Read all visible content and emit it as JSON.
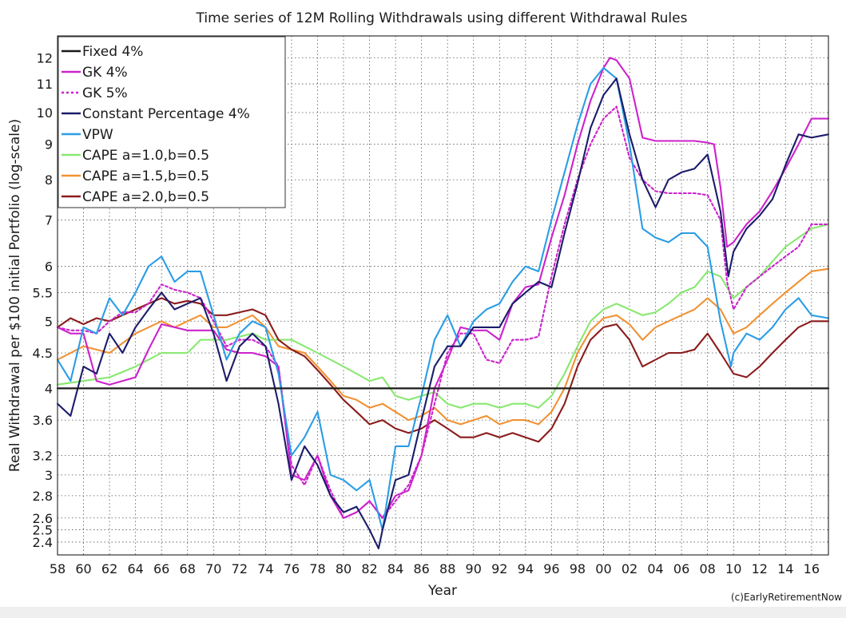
{
  "chart_data": {
    "type": "line",
    "title": "Time series of 12M Rolling Withdrawals using different Withdrawal Rules",
    "xlabel": "Year",
    "ylabel": "Real Withdrawal per $100 initial Portfolio (log-scale)",
    "credit": "(c)EarlyRetirementNow",
    "y_scale": "log",
    "xlim": [
      1958,
      2017.3
    ],
    "ylim": [
      2.3,
      12.9
    ],
    "grid": true,
    "legend_position": "top-left",
    "x_ticks": [
      {
        "v": 1958,
        "label": "58"
      },
      {
        "v": 1960,
        "label": "60"
      },
      {
        "v": 1962,
        "label": "62"
      },
      {
        "v": 1964,
        "label": "64"
      },
      {
        "v": 1966,
        "label": "66"
      },
      {
        "v": 1968,
        "label": "68"
      },
      {
        "v": 1970,
        "label": "70"
      },
      {
        "v": 1972,
        "label": "72"
      },
      {
        "v": 1974,
        "label": "74"
      },
      {
        "v": 1976,
        "label": "76"
      },
      {
        "v": 1978,
        "label": "78"
      },
      {
        "v": 1980,
        "label": "80"
      },
      {
        "v": 1982,
        "label": "82"
      },
      {
        "v": 1984,
        "label": "84"
      },
      {
        "v": 1986,
        "label": "86"
      },
      {
        "v": 1988,
        "label": "88"
      },
      {
        "v": 1990,
        "label": "90"
      },
      {
        "v": 1992,
        "label": "92"
      },
      {
        "v": 1994,
        "label": "94"
      },
      {
        "v": 1996,
        "label": "96"
      },
      {
        "v": 1998,
        "label": "98"
      },
      {
        "v": 2000,
        "label": "00"
      },
      {
        "v": 2002,
        "label": "02"
      },
      {
        "v": 2004,
        "label": "04"
      },
      {
        "v": 2006,
        "label": "06"
      },
      {
        "v": 2008,
        "label": "08"
      },
      {
        "v": 2010,
        "label": "10"
      },
      {
        "v": 2012,
        "label": "12"
      },
      {
        "v": 2014,
        "label": "14"
      },
      {
        "v": 2016,
        "label": "16"
      }
    ],
    "y_ticks": [
      {
        "v": 2.4,
        "label": "2.4"
      },
      {
        "v": 2.5,
        "label": "2.5"
      },
      {
        "v": 2.6,
        "label": "2.6"
      },
      {
        "v": 2.8,
        "label": "2.8"
      },
      {
        "v": 3,
        "label": "3"
      },
      {
        "v": 3.2,
        "label": "3.2"
      },
      {
        "v": 3.6,
        "label": "3.6"
      },
      {
        "v": 4,
        "label": "4"
      },
      {
        "v": 4.5,
        "label": "4.5"
      },
      {
        "v": 5,
        "label": "5"
      },
      {
        "v": 5.5,
        "label": "5.5"
      },
      {
        "v": 6,
        "label": "6"
      },
      {
        "v": 7,
        "label": "7"
      },
      {
        "v": 8,
        "label": "8"
      },
      {
        "v": 9,
        "label": "9"
      },
      {
        "v": 10,
        "label": "10"
      },
      {
        "v": 11,
        "label": "11"
      },
      {
        "v": 12,
        "label": "12"
      }
    ],
    "series": [
      {
        "name": "Fixed 4%",
        "color": "#1a1a1a",
        "dashed": false,
        "x": [
          1958,
          2017.3
        ],
        "y": [
          4.0,
          4.0
        ]
      },
      {
        "name": "GK 4%",
        "color": "#cc22cc",
        "dashed": false,
        "x": [
          1958,
          1959,
          1960,
          1961,
          1962,
          1963,
          1964,
          1965,
          1966,
          1967,
          1968,
          1969,
          1970,
          1971,
          1972,
          1973,
          1974,
          1975,
          1976,
          1977,
          1978,
          1979,
          1980,
          1981,
          1982,
          1983,
          1984,
          1985,
          1986,
          1987,
          1988,
          1989,
          1990,
          1991,
          1992,
          1993,
          1994,
          1995,
          1996,
          1997,
          1998,
          1999,
          2000,
          2000.5,
          2001,
          2002,
          2003,
          2004,
          2005,
          2006,
          2007,
          2008,
          2008.5,
          2009,
          2009.5,
          2010,
          2011,
          2012,
          2013,
          2014,
          2015,
          2016,
          2017.3
        ],
        "y": [
          4.9,
          4.8,
          4.8,
          4.1,
          4.05,
          4.1,
          4.15,
          4.55,
          4.95,
          4.9,
          4.85,
          4.85,
          4.85,
          4.55,
          4.5,
          4.5,
          4.45,
          4.3,
          3.0,
          2.95,
          3.2,
          2.8,
          2.6,
          2.65,
          2.75,
          2.6,
          2.8,
          2.85,
          3.2,
          4.0,
          4.4,
          4.9,
          4.85,
          4.85,
          4.7,
          5.3,
          5.6,
          5.65,
          6.6,
          7.6,
          9.0,
          10.4,
          11.6,
          12.0,
          11.9,
          11.2,
          9.2,
          9.1,
          9.1,
          9.1,
          9.1,
          9.05,
          9.0,
          7.8,
          6.4,
          6.5,
          6.9,
          7.2,
          7.7,
          8.3,
          9.0,
          9.8,
          9.8
        ]
      },
      {
        "name": "GK 5%",
        "color": "#cc22cc",
        "dashed": true,
        "x": [
          1958,
          1959,
          1960,
          1961,
          1962,
          1963,
          1964,
          1965,
          1966,
          1967,
          1968,
          1969,
          1970,
          1971,
          1972,
          1973,
          1974,
          1975,
          1976,
          1977,
          1978,
          1979,
          1980,
          1981,
          1982,
          1983,
          1984,
          1985,
          1986,
          1987,
          1988,
          1989,
          1990,
          1991,
          1992,
          1993,
          1994,
          1995,
          1996,
          1997,
          1998,
          1999,
          2000,
          2001,
          2002,
          2003,
          2004,
          2005,
          2006,
          2007,
          2008,
          2009,
          2009.5,
          2010,
          2011,
          2012,
          2013,
          2014,
          2015,
          2016,
          2017.3
        ],
        "y": [
          4.9,
          4.85,
          4.85,
          4.8,
          5.0,
          5.15,
          5.15,
          5.3,
          5.65,
          5.55,
          5.5,
          5.4,
          5.0,
          4.6,
          4.7,
          4.7,
          4.6,
          4.3,
          3.1,
          2.9,
          3.2,
          2.85,
          2.6,
          2.65,
          2.75,
          2.6,
          2.75,
          2.9,
          3.2,
          3.8,
          4.5,
          4.8,
          4.8,
          4.4,
          4.35,
          4.7,
          4.7,
          4.75,
          5.8,
          6.9,
          8.0,
          9.0,
          9.8,
          10.2,
          8.6,
          8.0,
          7.7,
          7.65,
          7.65,
          7.65,
          7.6,
          7.0,
          5.7,
          5.2,
          5.6,
          5.8,
          6.0,
          6.2,
          6.4,
          6.9,
          6.9
        ]
      },
      {
        "name": "Constant Percentage 4%",
        "color": "#1c1c6a",
        "dashed": false,
        "x": [
          1958,
          1959,
          1960,
          1961,
          1962,
          1963,
          1964,
          1965,
          1966,
          1967,
          1968,
          1969,
          1970,
          1971,
          1972,
          1973,
          1974,
          1975,
          1976,
          1977,
          1978,
          1979,
          1980,
          1981,
          1982,
          1982.7,
          1983,
          1984,
          1985,
          1986,
          1987,
          1988,
          1989,
          1990,
          1991,
          1992,
          1993,
          1994,
          1995,
          1996,
          1997,
          1998,
          1999,
          2000,
          2001,
          2002,
          2003,
          2004,
          2005,
          2006,
          2007,
          2008,
          2009,
          2009.6,
          2010,
          2011,
          2012,
          2013,
          2014,
          2015,
          2016,
          2017.3
        ],
        "y": [
          3.8,
          3.65,
          4.3,
          4.2,
          4.8,
          4.5,
          4.9,
          5.2,
          5.5,
          5.2,
          5.3,
          5.4,
          4.8,
          4.1,
          4.6,
          4.8,
          4.6,
          3.8,
          2.95,
          3.3,
          3.1,
          2.8,
          2.65,
          2.7,
          2.5,
          2.35,
          2.5,
          2.95,
          3.0,
          3.6,
          4.3,
          4.6,
          4.6,
          4.9,
          4.9,
          4.9,
          5.3,
          5.5,
          5.7,
          5.6,
          6.7,
          7.9,
          9.5,
          10.6,
          11.2,
          9.3,
          8.0,
          7.3,
          8.0,
          8.2,
          8.3,
          8.7,
          7.2,
          5.8,
          6.3,
          6.8,
          7.1,
          7.5,
          8.4,
          9.3,
          9.2,
          9.3
        ]
      },
      {
        "name": "VPW",
        "color": "#2a9de6",
        "dashed": false,
        "x": [
          1958,
          1959,
          1960,
          1961,
          1962,
          1963,
          1964,
          1965,
          1966,
          1967,
          1968,
          1969,
          1970,
          1971,
          1972,
          1973,
          1974,
          1975,
          1976,
          1977,
          1978,
          1979,
          1980,
          1981,
          1982,
          1983,
          1984,
          1985,
          1986,
          1987,
          1988,
          1989,
          1990,
          1991,
          1992,
          1993,
          1994,
          1995,
          1996,
          1997,
          1998,
          1999,
          2000,
          2001,
          2002,
          2003,
          2004,
          2005,
          2006,
          2007,
          2008,
          2009,
          2009.8,
          2010,
          2011,
          2012,
          2013,
          2014,
          2015,
          2016,
          2017.3
        ],
        "y": [
          4.4,
          4.1,
          4.9,
          4.8,
          5.4,
          5.1,
          5.5,
          6.0,
          6.2,
          5.7,
          5.9,
          5.9,
          5.1,
          4.4,
          4.8,
          5.0,
          4.9,
          4.2,
          3.2,
          3.4,
          3.7,
          3.0,
          2.95,
          2.85,
          2.95,
          2.5,
          3.3,
          3.3,
          3.9,
          4.7,
          5.1,
          4.6,
          5.0,
          5.2,
          5.3,
          5.7,
          6.0,
          5.9,
          7.0,
          8.2,
          9.6,
          11.0,
          11.6,
          11.2,
          9.0,
          6.8,
          6.6,
          6.5,
          6.7,
          6.7,
          6.4,
          5.0,
          4.3,
          4.5,
          4.8,
          4.7,
          4.9,
          5.2,
          5.4,
          5.1,
          5.05
        ]
      },
      {
        "name": "CAPE a=1.0,b=0.5",
        "color": "#88e870",
        "dashed": false,
        "x": [
          1958,
          1960,
          1962,
          1964,
          1966,
          1967,
          1968,
          1969,
          1970,
          1971,
          1972,
          1973,
          1974,
          1975,
          1976,
          1977,
          1978,
          1979,
          1980,
          1981,
          1982,
          1983,
          1984,
          1985,
          1986,
          1987,
          1988,
          1989,
          1990,
          1991,
          1992,
          1993,
          1994,
          1995,
          1996,
          1997,
          1998,
          1999,
          2000,
          2001,
          2002,
          2003,
          2004,
          2005,
          2006,
          2007,
          2008,
          2009,
          2010,
          2011,
          2012,
          2013,
          2014,
          2015,
          2016,
          2017.3
        ],
        "y": [
          4.05,
          4.1,
          4.15,
          4.3,
          4.5,
          4.5,
          4.5,
          4.7,
          4.7,
          4.7,
          4.75,
          4.8,
          4.7,
          4.7,
          4.7,
          4.6,
          4.5,
          4.4,
          4.3,
          4.2,
          4.1,
          4.15,
          3.9,
          3.85,
          3.9,
          3.95,
          3.8,
          3.75,
          3.8,
          3.8,
          3.75,
          3.8,
          3.8,
          3.75,
          3.9,
          4.2,
          4.6,
          5.0,
          5.2,
          5.3,
          5.2,
          5.1,
          5.15,
          5.3,
          5.5,
          5.6,
          5.9,
          5.8,
          5.4,
          5.6,
          5.8,
          6.1,
          6.4,
          6.6,
          6.8,
          6.9
        ]
      },
      {
        "name": "CAPE a=1.5,b=0.5",
        "color": "#f19233",
        "dashed": false,
        "x": [
          1958,
          1960,
          1962,
          1964,
          1966,
          1967,
          1968,
          1969,
          1970,
          1971,
          1972,
          1973,
          1974,
          1975,
          1976,
          1977,
          1978,
          1979,
          1980,
          1981,
          1982,
          1983,
          1984,
          1985,
          1986,
          1987,
          1988,
          1989,
          1990,
          1991,
          1992,
          1993,
          1994,
          1995,
          1996,
          1997,
          1998,
          1999,
          2000,
          2001,
          2002,
          2003,
          2004,
          2005,
          2006,
          2007,
          2008,
          2009,
          2010,
          2011,
          2012,
          2013,
          2014,
          2015,
          2016,
          2017.3
        ],
        "y": [
          4.4,
          4.6,
          4.5,
          4.8,
          5.0,
          4.9,
          5.0,
          5.1,
          4.9,
          4.9,
          5.0,
          5.1,
          4.9,
          4.6,
          4.55,
          4.5,
          4.3,
          4.1,
          3.9,
          3.85,
          3.75,
          3.8,
          3.7,
          3.6,
          3.65,
          3.75,
          3.6,
          3.55,
          3.6,
          3.65,
          3.55,
          3.6,
          3.6,
          3.55,
          3.7,
          4.0,
          4.5,
          4.85,
          5.05,
          5.1,
          4.95,
          4.7,
          4.9,
          5.0,
          5.1,
          5.2,
          5.4,
          5.2,
          4.8,
          4.9,
          5.1,
          5.3,
          5.5,
          5.7,
          5.9,
          5.95
        ]
      },
      {
        "name": "CAPE a=2.0,b=0.5",
        "color": "#8b1c1c",
        "dashed": false,
        "x": [
          1958,
          1959,
          1960,
          1961,
          1962,
          1963,
          1964,
          1965,
          1966,
          1967,
          1968,
          1969,
          1970,
          1971,
          1972,
          1973,
          1974,
          1975,
          1976,
          1977,
          1978,
          1979,
          1980,
          1981,
          1982,
          1983,
          1984,
          1985,
          1986,
          1987,
          1988,
          1989,
          1990,
          1991,
          1992,
          1993,
          1994,
          1995,
          1996,
          1997,
          1998,
          1999,
          2000,
          2001,
          2002,
          2003,
          2004,
          2005,
          2006,
          2007,
          2008,
          2009,
          2010,
          2011,
          2012,
          2013,
          2014,
          2015,
          2016,
          2017.3
        ],
        "y": [
          4.9,
          5.05,
          4.95,
          5.05,
          5.0,
          5.1,
          5.2,
          5.3,
          5.4,
          5.3,
          5.35,
          5.3,
          5.1,
          5.1,
          5.15,
          5.2,
          5.1,
          4.7,
          4.55,
          4.45,
          4.25,
          4.05,
          3.85,
          3.7,
          3.55,
          3.6,
          3.5,
          3.45,
          3.5,
          3.6,
          3.5,
          3.4,
          3.4,
          3.45,
          3.4,
          3.45,
          3.4,
          3.35,
          3.5,
          3.8,
          4.3,
          4.7,
          4.9,
          4.95,
          4.7,
          4.3,
          4.4,
          4.5,
          4.5,
          4.55,
          4.8,
          4.5,
          4.2,
          4.15,
          4.3,
          4.5,
          4.7,
          4.9,
          5.0,
          5.0
        ]
      }
    ]
  }
}
